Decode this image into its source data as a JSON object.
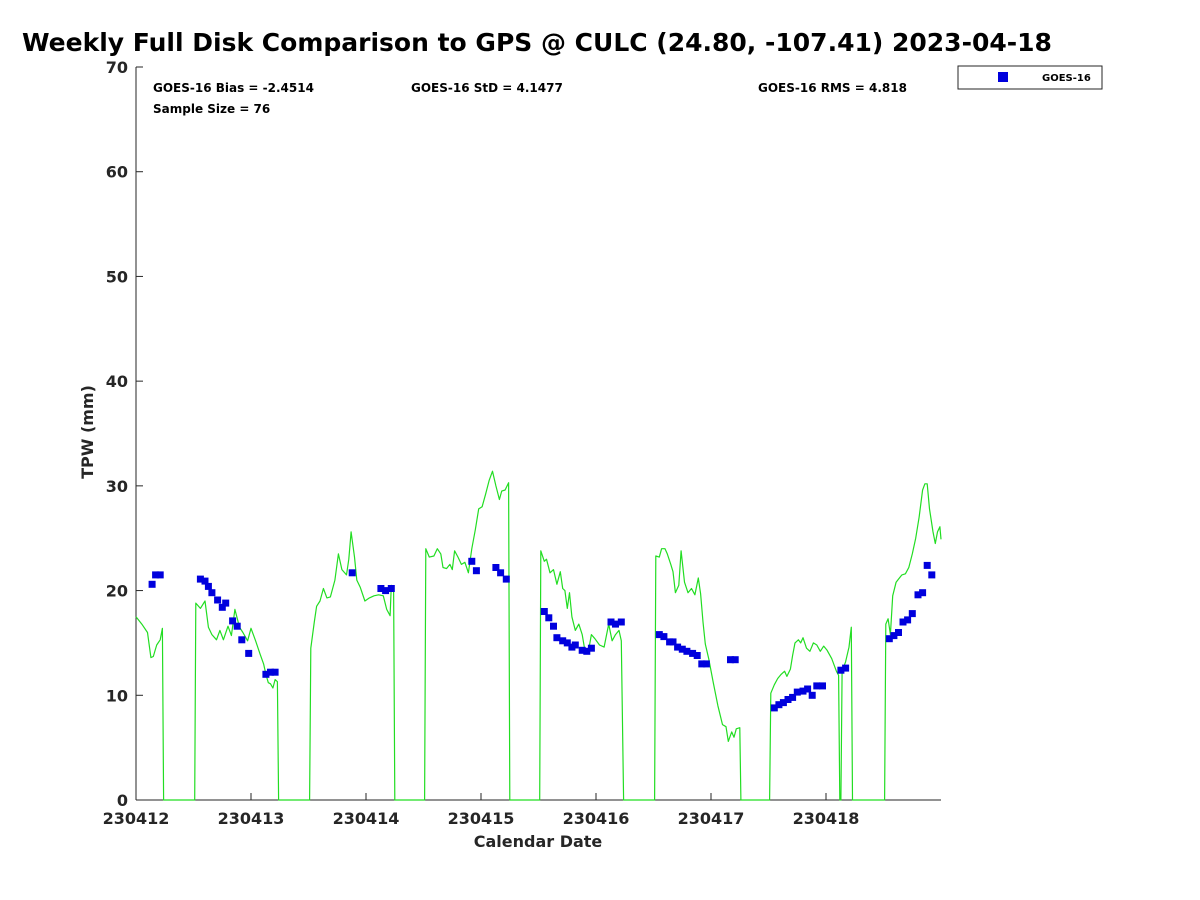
{
  "title": "Weekly Full Disk Comparison to GPS @ CULC (24.80, -107.41) 2023-04-18",
  "stats": {
    "bias": "GOES-16 Bias = -2.4514",
    "std": "GOES-16 StD = 4.1477",
    "rms": "GOES-16 RMS = 4.818",
    "sample": "Sample Size = 76"
  },
  "legend": {
    "label": "GOES-16",
    "position": "top-right outside plot"
  },
  "colors": {
    "goes": "#0000dd",
    "gps": "#22dd22",
    "axis": "#262626"
  },
  "chart_data": {
    "type": "scatter",
    "xlabel": "Calendar Date",
    "ylabel": "TPW (mm)",
    "xlim": [
      0,
      7
    ],
    "ylim": [
      0,
      70
    ],
    "x_ticks": [
      0,
      1,
      2,
      3,
      4,
      5,
      6
    ],
    "x_tick_labels": [
      "230412",
      "230413",
      "230414",
      "230415",
      "230416",
      "230417",
      "230418"
    ],
    "y_ticks": [
      0,
      10,
      20,
      30,
      40,
      50,
      60,
      70
    ],
    "grid": false,
    "series": [
      {
        "name": "GOES-16",
        "type": "scatter",
        "points": [
          [
            0.14,
            20.6
          ],
          [
            0.17,
            21.5
          ],
          [
            0.21,
            21.5
          ],
          [
            0.56,
            21.1
          ],
          [
            0.6,
            20.9
          ],
          [
            0.63,
            20.4
          ],
          [
            0.66,
            19.8
          ],
          [
            0.71,
            19.1
          ],
          [
            0.75,
            18.4
          ],
          [
            0.78,
            18.8
          ],
          [
            0.84,
            17.1
          ],
          [
            0.88,
            16.6
          ],
          [
            0.92,
            15.3
          ],
          [
            0.98,
            14.0
          ],
          [
            1.13,
            12.0
          ],
          [
            1.17,
            12.2
          ],
          [
            1.21,
            12.2
          ],
          [
            1.88,
            21.7
          ],
          [
            2.13,
            20.2
          ],
          [
            2.17,
            20.0
          ],
          [
            2.22,
            20.2
          ],
          [
            2.92,
            22.8
          ],
          [
            2.96,
            21.9
          ],
          [
            3.13,
            22.2
          ],
          [
            3.17,
            21.7
          ],
          [
            3.22,
            21.1
          ],
          [
            3.55,
            18.0
          ],
          [
            3.59,
            17.4
          ],
          [
            3.63,
            16.6
          ],
          [
            3.66,
            15.5
          ],
          [
            3.71,
            15.2
          ],
          [
            3.75,
            15.0
          ],
          [
            3.79,
            14.6
          ],
          [
            3.82,
            14.8
          ],
          [
            3.88,
            14.3
          ],
          [
            3.92,
            14.2
          ],
          [
            3.96,
            14.5
          ],
          [
            4.13,
            17.0
          ],
          [
            4.17,
            16.8
          ],
          [
            4.22,
            17.0
          ],
          [
            4.55,
            15.8
          ],
          [
            4.59,
            15.6
          ],
          [
            4.64,
            15.1
          ],
          [
            4.67,
            15.1
          ],
          [
            4.71,
            14.6
          ],
          [
            4.75,
            14.4
          ],
          [
            4.79,
            14.2
          ],
          [
            4.84,
            14.0
          ],
          [
            4.88,
            13.8
          ],
          [
            4.92,
            13.0
          ],
          [
            4.96,
            13.0
          ],
          [
            5.17,
            13.4
          ],
          [
            5.21,
            13.4
          ],
          [
            5.55,
            8.8
          ],
          [
            5.59,
            9.1
          ],
          [
            5.63,
            9.3
          ],
          [
            5.67,
            9.6
          ],
          [
            5.71,
            9.8
          ],
          [
            5.75,
            10.3
          ],
          [
            5.8,
            10.4
          ],
          [
            5.84,
            10.6
          ],
          [
            5.88,
            10.0
          ],
          [
            5.92,
            10.9
          ],
          [
            5.97,
            10.9
          ],
          [
            6.13,
            12.4
          ],
          [
            6.17,
            12.6
          ],
          [
            6.55,
            15.4
          ],
          [
            6.59,
            15.7
          ],
          [
            6.63,
            16.0
          ],
          [
            6.67,
            17.0
          ],
          [
            6.71,
            17.2
          ],
          [
            6.75,
            17.8
          ],
          [
            6.8,
            19.6
          ],
          [
            6.84,
            19.8
          ],
          [
            6.88,
            22.4
          ],
          [
            6.92,
            21.5
          ]
        ]
      },
      {
        "type": "line",
        "points": [
          [
            0.0,
            17.5
          ],
          [
            0.05,
            16.8
          ],
          [
            0.1,
            16.0
          ],
          [
            0.13,
            13.6
          ],
          [
            0.15,
            13.7
          ],
          [
            0.18,
            14.8
          ],
          [
            0.21,
            15.3
          ],
          [
            0.23,
            16.4
          ],
          [
            0.24,
            0
          ],
          [
            0.51,
            0
          ],
          [
            0.52,
            18.8
          ],
          [
            0.56,
            18.3
          ],
          [
            0.6,
            19.0
          ],
          [
            0.63,
            16.5
          ],
          [
            0.66,
            15.8
          ],
          [
            0.7,
            15.3
          ],
          [
            0.73,
            16.2
          ],
          [
            0.76,
            15.3
          ],
          [
            0.8,
            16.6
          ],
          [
            0.83,
            15.7
          ],
          [
            0.86,
            18.2
          ],
          [
            0.9,
            16.5
          ],
          [
            0.93,
            16.0
          ],
          [
            0.97,
            15.2
          ],
          [
            1.0,
            16.4
          ],
          [
            1.04,
            15.2
          ],
          [
            1.08,
            13.9
          ],
          [
            1.11,
            13.0
          ],
          [
            1.13,
            12.0
          ],
          [
            1.15,
            11.2
          ],
          [
            1.17,
            11.1
          ],
          [
            1.19,
            10.7
          ],
          [
            1.21,
            11.5
          ],
          [
            1.23,
            11.3
          ],
          [
            1.24,
            0
          ],
          [
            1.51,
            0
          ],
          [
            1.52,
            14.5
          ],
          [
            1.55,
            17.0
          ],
          [
            1.57,
            18.5
          ],
          [
            1.6,
            19.0
          ],
          [
            1.63,
            20.2
          ],
          [
            1.66,
            19.3
          ],
          [
            1.69,
            19.4
          ],
          [
            1.73,
            21.0
          ],
          [
            1.76,
            23.5
          ],
          [
            1.79,
            22.0
          ],
          [
            1.83,
            21.5
          ],
          [
            1.85,
            23.0
          ],
          [
            1.87,
            25.6
          ],
          [
            1.9,
            23.2
          ],
          [
            1.92,
            21.0
          ],
          [
            1.95,
            20.3
          ],
          [
            1.99,
            19.0
          ],
          [
            2.03,
            19.3
          ],
          [
            2.07,
            19.5
          ],
          [
            2.11,
            19.6
          ],
          [
            2.15,
            19.5
          ],
          [
            2.18,
            18.2
          ],
          [
            2.21,
            17.6
          ],
          [
            2.22,
            20.5
          ],
          [
            2.24,
            20.3
          ],
          [
            2.25,
            0
          ],
          [
            2.51,
            0
          ],
          [
            2.52,
            24.0
          ],
          [
            2.55,
            23.2
          ],
          [
            2.59,
            23.3
          ],
          [
            2.62,
            24.0
          ],
          [
            2.65,
            23.5
          ],
          [
            2.67,
            22.2
          ],
          [
            2.7,
            22.1
          ],
          [
            2.73,
            22.5
          ],
          [
            2.75,
            22.0
          ],
          [
            2.77,
            23.8
          ],
          [
            2.8,
            23.2
          ],
          [
            2.83,
            22.5
          ],
          [
            2.86,
            22.7
          ],
          [
            2.89,
            21.7
          ],
          [
            2.92,
            24.0
          ],
          [
            2.95,
            25.8
          ],
          [
            2.98,
            27.8
          ],
          [
            3.01,
            28.0
          ],
          [
            3.04,
            29.2
          ],
          [
            3.07,
            30.5
          ],
          [
            3.1,
            31.4
          ],
          [
            3.13,
            30.0
          ],
          [
            3.16,
            28.7
          ],
          [
            3.18,
            29.5
          ],
          [
            3.21,
            29.6
          ],
          [
            3.24,
            30.3
          ],
          [
            3.25,
            0
          ],
          [
            3.51,
            0
          ],
          [
            3.52,
            23.8
          ],
          [
            3.55,
            22.8
          ],
          [
            3.57,
            23.0
          ],
          [
            3.6,
            21.7
          ],
          [
            3.63,
            22.0
          ],
          [
            3.66,
            20.6
          ],
          [
            3.69,
            21.8
          ],
          [
            3.71,
            20.2
          ],
          [
            3.73,
            20.0
          ],
          [
            3.75,
            18.3
          ],
          [
            3.77,
            19.8
          ],
          [
            3.79,
            17.5
          ],
          [
            3.82,
            16.2
          ],
          [
            3.85,
            16.8
          ],
          [
            3.88,
            15.8
          ],
          [
            3.9,
            14.5
          ],
          [
            3.93,
            14.0
          ],
          [
            3.96,
            15.8
          ],
          [
            3.99,
            15.4
          ],
          [
            4.03,
            14.8
          ],
          [
            4.07,
            14.6
          ],
          [
            4.11,
            16.8
          ],
          [
            4.14,
            15.2
          ],
          [
            4.17,
            15.8
          ],
          [
            4.2,
            16.2
          ],
          [
            4.22,
            15.2
          ],
          [
            4.24,
            0
          ],
          [
            4.51,
            0
          ],
          [
            4.52,
            23.3
          ],
          [
            4.55,
            23.2
          ],
          [
            4.57,
            24.0
          ],
          [
            4.6,
            24.0
          ],
          [
            4.62,
            23.5
          ],
          [
            4.65,
            22.5
          ],
          [
            4.67,
            21.8
          ],
          [
            4.69,
            19.8
          ],
          [
            4.72,
            20.5
          ],
          [
            4.74,
            23.8
          ],
          [
            4.77,
            20.8
          ],
          [
            4.8,
            19.8
          ],
          [
            4.83,
            20.2
          ],
          [
            4.86,
            19.6
          ],
          [
            4.89,
            21.2
          ],
          [
            4.91,
            19.7
          ],
          [
            4.93,
            17.0
          ],
          [
            4.95,
            14.9
          ],
          [
            4.98,
            13.5
          ],
          [
            5.02,
            11.2
          ],
          [
            5.06,
            9.0
          ],
          [
            5.1,
            7.2
          ],
          [
            5.13,
            7.0
          ],
          [
            5.15,
            5.6
          ],
          [
            5.18,
            6.5
          ],
          [
            5.2,
            6.0
          ],
          [
            5.22,
            6.8
          ],
          [
            5.25,
            6.9
          ],
          [
            5.26,
            0
          ],
          [
            5.51,
            0
          ],
          [
            5.52,
            10.2
          ],
          [
            5.55,
            11.0
          ],
          [
            5.58,
            11.6
          ],
          [
            5.61,
            12.0
          ],
          [
            5.64,
            12.3
          ],
          [
            5.66,
            11.8
          ],
          [
            5.69,
            12.5
          ],
          [
            5.71,
            13.8
          ],
          [
            5.73,
            15.0
          ],
          [
            5.76,
            15.3
          ],
          [
            5.78,
            15.0
          ],
          [
            5.8,
            15.5
          ],
          [
            5.83,
            14.5
          ],
          [
            5.86,
            14.2
          ],
          [
            5.89,
            15.0
          ],
          [
            5.92,
            14.8
          ],
          [
            5.95,
            14.2
          ],
          [
            5.98,
            14.7
          ],
          [
            6.01,
            14.3
          ],
          [
            6.05,
            13.5
          ],
          [
            6.09,
            12.3
          ],
          [
            6.11,
            11.9
          ],
          [
            6.12,
            0
          ],
          [
            6.13,
            0
          ],
          [
            6.14,
            12.3
          ],
          [
            6.17,
            13.2
          ],
          [
            6.2,
            14.6
          ],
          [
            6.22,
            16.5
          ],
          [
            6.23,
            0
          ],
          [
            6.51,
            0
          ],
          [
            6.52,
            16.8
          ],
          [
            6.54,
            17.3
          ],
          [
            6.56,
            15.8
          ],
          [
            6.58,
            19.5
          ],
          [
            6.61,
            20.8
          ],
          [
            6.63,
            21.1
          ],
          [
            6.66,
            21.5
          ],
          [
            6.69,
            21.6
          ],
          [
            6.72,
            22.2
          ],
          [
            6.75,
            23.5
          ],
          [
            6.78,
            25.0
          ],
          [
            6.81,
            27.0
          ],
          [
            6.84,
            29.6
          ],
          [
            6.86,
            30.2
          ],
          [
            6.88,
            30.2
          ],
          [
            6.9,
            27.8
          ],
          [
            6.93,
            25.6
          ],
          [
            6.95,
            24.5
          ],
          [
            6.97,
            25.6
          ],
          [
            6.99,
            26.1
          ],
          [
            7.0,
            24.9
          ]
        ]
      }
    ]
  }
}
